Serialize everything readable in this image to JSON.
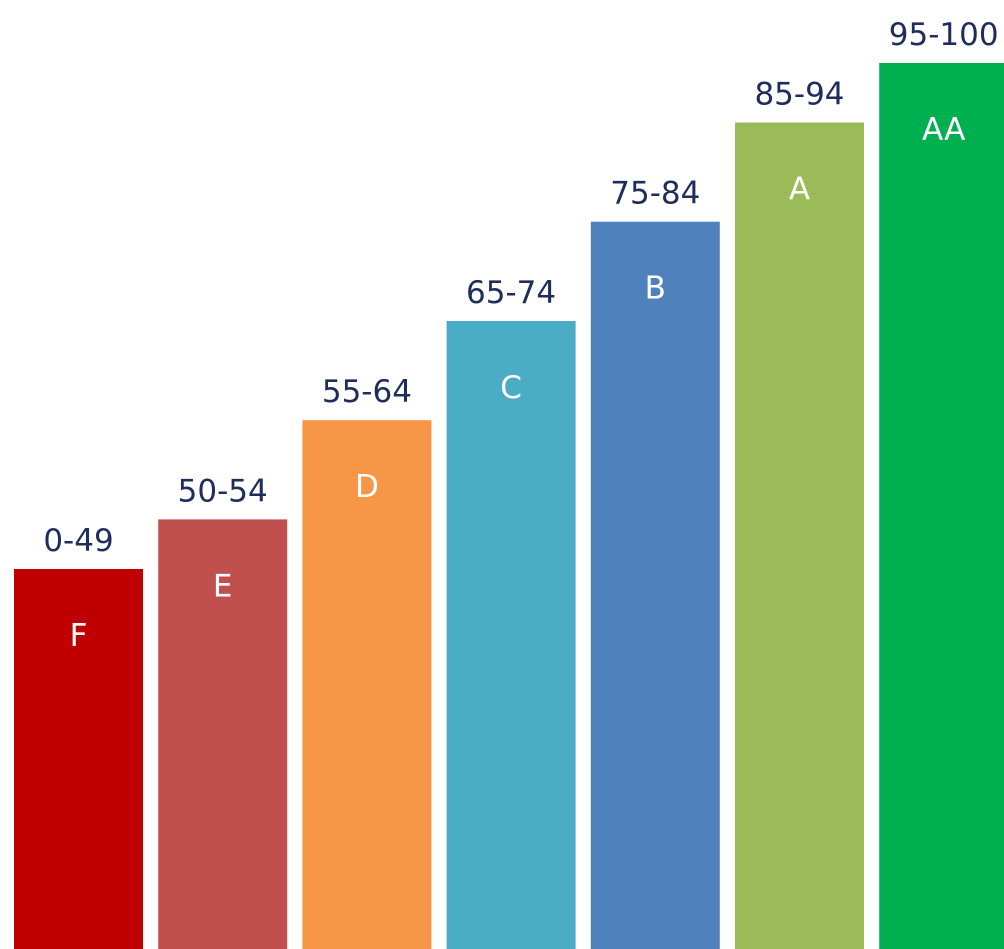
{
  "chart_data": {
    "type": "bar",
    "categories": [
      "0-49",
      "50-54",
      "55-64",
      "65-74",
      "75-84",
      "85-94",
      "95-100"
    ],
    "values": [
      49,
      54,
      64,
      74,
      84,
      94,
      100
    ],
    "grades": [
      "F",
      "E",
      "D",
      "C",
      "B",
      "A",
      "AA"
    ],
    "colors": [
      "#c00000",
      "#c0504d",
      "#f79646",
      "#4bacc6",
      "#4f81bd",
      "#9bbb59",
      "#00b050"
    ],
    "range_label_color": "#1f2d5c",
    "grade_label_color": "#ffffff",
    "title": "",
    "xlabel": "",
    "ylabel": "",
    "ylim": [
      0,
      100
    ],
    "grid": false,
    "legend": "none"
  }
}
